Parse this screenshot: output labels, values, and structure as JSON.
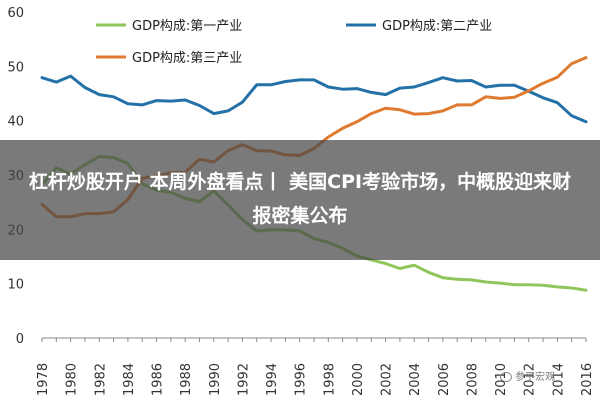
{
  "chart_data": {
    "type": "line",
    "x": [
      1978,
      1979,
      1980,
      1981,
      1982,
      1983,
      1984,
      1985,
      1986,
      1987,
      1988,
      1989,
      1990,
      1991,
      1992,
      1993,
      1994,
      1995,
      1996,
      1997,
      1998,
      1999,
      2000,
      2001,
      2002,
      2003,
      2004,
      2005,
      2006,
      2007,
      2008,
      2009,
      2010,
      2011,
      2012,
      2013,
      2014,
      2015,
      2016
    ],
    "xticks": [
      1978,
      1980,
      1982,
      1984,
      1986,
      1988,
      1990,
      1992,
      1994,
      1996,
      1998,
      2000,
      2002,
      2004,
      2006,
      2008,
      2010,
      2012,
      2014,
      2016
    ],
    "yticks": [
      0,
      10,
      20,
      30,
      40,
      50,
      60
    ],
    "ylim": [
      0,
      60
    ],
    "legend": "top",
    "series": [
      {
        "name": "GDP构成:第一产业",
        "color": "#8fc65b",
        "values": [
          28.2,
          31.3,
          30.2,
          31.9,
          33.4,
          33.2,
          32.1,
          28.4,
          27.2,
          26.8,
          25.7,
          25.1,
          27.1,
          24.5,
          21.8,
          19.7,
          19.9,
          19.9,
          19.7,
          18.3,
          17.6,
          16.5,
          15.1,
          14.4,
          13.7,
          12.8,
          13.4,
          12.1,
          11.1,
          10.8,
          10.7,
          10.3,
          10.1,
          9.8,
          9.8,
          9.7,
          9.4,
          9.2,
          8.8
        ]
      },
      {
        "name": "GDP构成:第二产业",
        "color": "#2471a8",
        "values": [
          47.9,
          47.1,
          48.2,
          46.1,
          44.8,
          44.4,
          43.1,
          42.9,
          43.7,
          43.6,
          43.8,
          42.8,
          41.3,
          41.8,
          43.4,
          46.6,
          46.6,
          47.2,
          47.5,
          47.5,
          46.2,
          45.8,
          45.9,
          45.2,
          44.8,
          46.0,
          46.2,
          47.0,
          47.9,
          47.3,
          47.4,
          46.2,
          46.5,
          46.5,
          45.4,
          44.2,
          43.3,
          40.9,
          39.8
        ]
      },
      {
        "name": "GDP构成:第三产业",
        "color": "#df7b30",
        "values": [
          24.6,
          22.3,
          22.3,
          22.9,
          22.9,
          23.2,
          25.5,
          29.4,
          29.8,
          30.4,
          30.5,
          32.9,
          32.4,
          34.5,
          35.6,
          34.5,
          34.4,
          33.7,
          33.6,
          34.9,
          37.0,
          38.6,
          39.8,
          41.3,
          42.3,
          42.0,
          41.2,
          41.3,
          41.8,
          42.9,
          42.9,
          44.4,
          44.1,
          44.3,
          45.5,
          46.9,
          48.0,
          50.5,
          51.6
        ]
      }
    ]
  },
  "overlay": {
    "title": "杠杆炒股开户 本周外盘看点丨  美国CPI考验市场，中概股迎来财报密集公布"
  },
  "watermark": {
    "text": "参平宏观"
  }
}
